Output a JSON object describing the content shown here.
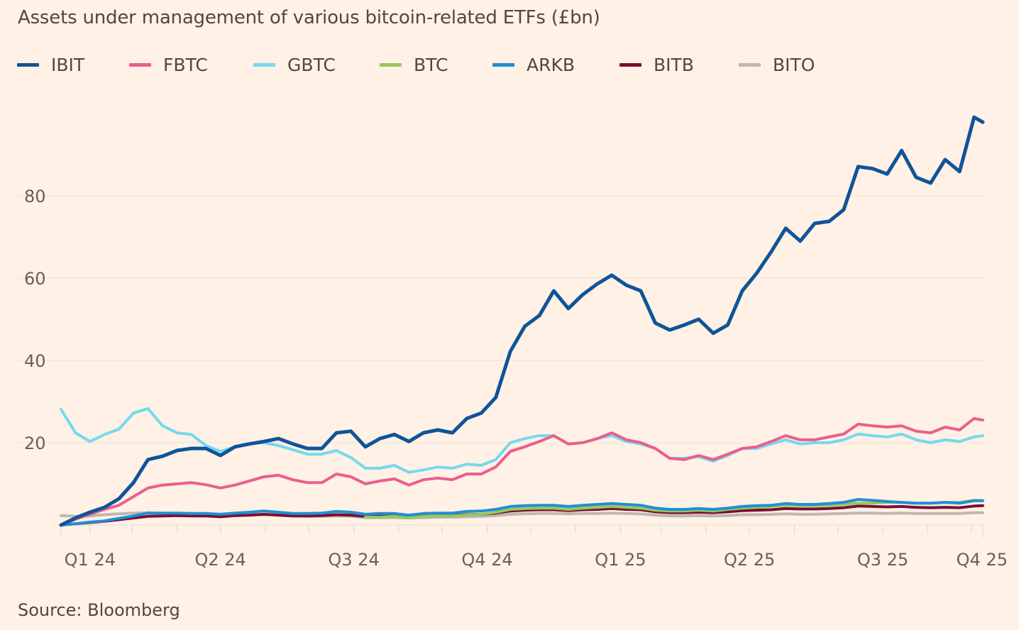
{
  "source": "Source: Bloomberg",
  "colors": {
    "background": "#fff1e5",
    "grid": "#ede3da",
    "text": "#66605c"
  },
  "chart_data": {
    "type": "line",
    "title": "Assets under management of various bitcoin-related ETFs (£bn)",
    "xlabel": "",
    "ylabel": "",
    "ylim": [
      0,
      105
    ],
    "yticks": [
      20,
      40,
      60,
      80
    ],
    "ytick_labels": [
      "20",
      "40",
      "60",
      "80"
    ],
    "xlim": [
      "2024-01-11",
      "2025-10-08"
    ],
    "xtick_labels": [
      {
        "label": "Q1 24",
        "date": "2024-01-31"
      },
      {
        "label": "Q2 24",
        "date": "2024-04-30"
      },
      {
        "label": "Q3 24",
        "date": "2024-07-31"
      },
      {
        "label": "Q4 24",
        "date": "2024-10-31"
      },
      {
        "label": "Q1 25",
        "date": "2025-01-31"
      },
      {
        "label": "Q2 25",
        "date": "2025-04-30"
      },
      {
        "label": "Q3 25",
        "date": "2025-07-31"
      },
      {
        "label": "Q4 25",
        "date": "2025-10-08"
      }
    ],
    "grid": true,
    "legend_position": "top",
    "x": [
      "2024-01-11",
      "2024-01-21",
      "2024-01-31",
      "2024-02-10",
      "2024-02-20",
      "2024-03-01",
      "2024-03-11",
      "2024-03-21",
      "2024-03-31",
      "2024-04-10",
      "2024-04-20",
      "2024-04-30",
      "2024-05-10",
      "2024-05-20",
      "2024-05-30",
      "2024-06-09",
      "2024-06-19",
      "2024-06-29",
      "2024-07-09",
      "2024-07-19",
      "2024-07-29",
      "2024-08-08",
      "2024-08-18",
      "2024-08-28",
      "2024-09-07",
      "2024-09-17",
      "2024-09-27",
      "2024-10-07",
      "2024-10-17",
      "2024-10-27",
      "2024-11-06",
      "2024-11-16",
      "2024-11-26",
      "2024-12-06",
      "2024-12-16",
      "2024-12-26",
      "2025-01-05",
      "2025-01-15",
      "2025-01-25",
      "2025-02-04",
      "2025-02-14",
      "2025-02-24",
      "2025-03-06",
      "2025-03-16",
      "2025-03-26",
      "2025-04-05",
      "2025-04-15",
      "2025-04-25",
      "2025-05-05",
      "2025-05-15",
      "2025-05-25",
      "2025-06-04",
      "2025-06-14",
      "2025-06-24",
      "2025-07-04",
      "2025-07-14",
      "2025-07-24",
      "2025-08-03",
      "2025-08-13",
      "2025-08-23",
      "2025-09-02",
      "2025-09-12",
      "2025-09-22",
      "2025-10-02",
      "2025-10-08"
    ],
    "series": [
      {
        "name": "IBIT",
        "color": "#0f5499",
        "values": [
          0,
          1.7,
          3.1,
          4.3,
          6.4,
          10.3,
          15.9,
          16.7,
          18.1,
          18.6,
          18.6,
          16.9,
          19,
          19.7,
          20.3,
          21,
          19.7,
          18.6,
          18.6,
          22.4,
          22.8,
          19,
          21,
          22,
          20.3,
          22.4,
          23.1,
          22.4,
          25.9,
          27.2,
          31,
          42.2,
          48.3,
          50.9,
          56.9,
          52.6,
          56,
          58.6,
          60.7,
          58.3,
          56.9,
          49.1,
          47.4,
          48.6,
          50,
          46.6,
          48.6,
          56.9,
          61.2,
          66.4,
          72.1,
          69,
          73.3,
          73.8,
          76.6,
          87.1,
          86.6,
          85.3,
          91,
          84.5,
          83.1,
          88.8,
          85.9,
          99.1,
          97.9
        ]
      },
      {
        "name": "FBTC",
        "color": "#eb5e8d",
        "values": [
          0,
          1.4,
          2.6,
          3.8,
          4.8,
          6.9,
          9,
          9.7,
          10,
          10.3,
          9.8,
          9,
          9.7,
          10.7,
          11.7,
          12.1,
          11,
          10.3,
          10.3,
          12.4,
          11.7,
          10,
          10.7,
          11.2,
          9.7,
          11,
          11.4,
          11,
          12.4,
          12.4,
          14.1,
          17.9,
          19,
          20.3,
          21.7,
          19.7,
          20,
          21,
          22.4,
          20.7,
          20,
          18.6,
          16.2,
          15.9,
          16.9,
          15.9,
          17.2,
          18.6,
          19,
          20.3,
          21.7,
          20.7,
          20.7,
          21.4,
          22.1,
          24.5,
          24.1,
          23.8,
          24.1,
          22.8,
          22.4,
          23.8,
          23.1,
          25.9,
          25.5
        ]
      },
      {
        "name": "GBTC",
        "color": "#75d9ee",
        "values": [
          28.1,
          22.4,
          20.3,
          22,
          23.3,
          27.2,
          28.3,
          24.1,
          22.4,
          22,
          19.3,
          17.9,
          19,
          19.7,
          20,
          19.3,
          18.3,
          17.2,
          17.2,
          18.1,
          16.4,
          13.8,
          13.8,
          14.5,
          12.8,
          13.4,
          14.1,
          13.8,
          14.8,
          14.5,
          15.9,
          20,
          21,
          21.7,
          21.7,
          19.7,
          20,
          21,
          21.7,
          20.3,
          19.7,
          18.6,
          16.2,
          16.2,
          16.6,
          15.5,
          16.9,
          18.6,
          18.6,
          19.7,
          20.7,
          19.7,
          20,
          20,
          20.7,
          22.1,
          21.7,
          21.4,
          22.1,
          20.7,
          20,
          20.7,
          20.3,
          21.4,
          21.7
        ]
      },
      {
        "name": "BTC",
        "color": "#96c95a",
        "values": [
          null,
          null,
          null,
          null,
          null,
          null,
          null,
          null,
          null,
          null,
          null,
          null,
          null,
          null,
          null,
          null,
          null,
          null,
          null,
          null,
          null,
          1.9,
          1.9,
          2.1,
          1.7,
          2.1,
          2.2,
          2.2,
          2.4,
          2.6,
          3.1,
          3.8,
          4,
          4.1,
          4.1,
          3.8,
          4.1,
          4.3,
          4.5,
          4.3,
          4.1,
          3.6,
          3.4,
          3.4,
          3.6,
          3.4,
          3.8,
          4.1,
          4.3,
          4.5,
          4.8,
          4.7,
          4.7,
          4.8,
          5,
          5.3,
          5.3,
          5.5,
          5.5,
          5.3,
          5.3,
          5.5,
          5.5,
          6,
          5.9
        ]
      },
      {
        "name": "ARKB",
        "color": "#1f8fd6",
        "values": [
          0,
          0.3,
          0.7,
          1,
          1.6,
          2.2,
          2.9,
          2.9,
          2.9,
          2.8,
          2.8,
          2.6,
          2.9,
          3.1,
          3.4,
          3.1,
          2.8,
          2.8,
          2.9,
          3.3,
          3.1,
          2.6,
          2.8,
          2.8,
          2.4,
          2.8,
          2.9,
          2.9,
          3.3,
          3.4,
          3.8,
          4.5,
          4.7,
          4.8,
          4.8,
          4.5,
          4.8,
          5,
          5.2,
          5,
          4.8,
          4.1,
          3.8,
          3.8,
          4,
          3.8,
          4.1,
          4.5,
          4.7,
          4.8,
          5.2,
          5,
          5,
          5.2,
          5.5,
          6.2,
          6,
          5.7,
          5.5,
          5.3,
          5.3,
          5.5,
          5.3,
          5.9,
          5.9
        ]
      },
      {
        "name": "BITB",
        "color": "#7a0f32",
        "values": [
          0,
          0.3,
          0.6,
          0.9,
          1.3,
          1.7,
          2.1,
          2.2,
          2.3,
          2.2,
          2.2,
          2,
          2.3,
          2.4,
          2.6,
          2.4,
          2.2,
          2.2,
          2.3,
          2.5,
          2.4,
          2.1,
          2.2,
          2.2,
          2,
          2.2,
          2.3,
          2.3,
          2.5,
          2.6,
          2.9,
          3.4,
          3.6,
          3.7,
          3.7,
          3.5,
          3.7,
          3.8,
          4,
          3.8,
          3.7,
          3.2,
          3,
          3,
          3.1,
          3,
          3.2,
          3.5,
          3.6,
          3.7,
          4,
          3.9,
          3.9,
          4,
          4.2,
          4.6,
          4.5,
          4.4,
          4.5,
          4.3,
          4.2,
          4.3,
          4.2,
          4.6,
          4.7
        ]
      },
      {
        "name": "BITO",
        "color": "#bdb8b3",
        "values": [
          2.3,
          2.1,
          2.2,
          2.5,
          2.7,
          2.9,
          3,
          2.8,
          2.6,
          2.5,
          2.4,
          2.2,
          2.3,
          2.4,
          2.5,
          2.4,
          2.2,
          2.1,
          2.1,
          2.2,
          2.1,
          1.8,
          1.8,
          1.8,
          1.7,
          1.8,
          1.9,
          1.9,
          2,
          2.1,
          2.3,
          2.6,
          2.7,
          2.8,
          2.8,
          2.7,
          2.8,
          2.8,
          2.9,
          2.8,
          2.7,
          2.4,
          2.2,
          2.2,
          2.3,
          2.2,
          2.3,
          2.5,
          2.5,
          2.6,
          2.7,
          2.6,
          2.6,
          2.7,
          2.8,
          2.9,
          2.9,
          2.8,
          2.9,
          2.8,
          2.8,
          2.8,
          2.8,
          3,
          3
        ]
      }
    ]
  }
}
